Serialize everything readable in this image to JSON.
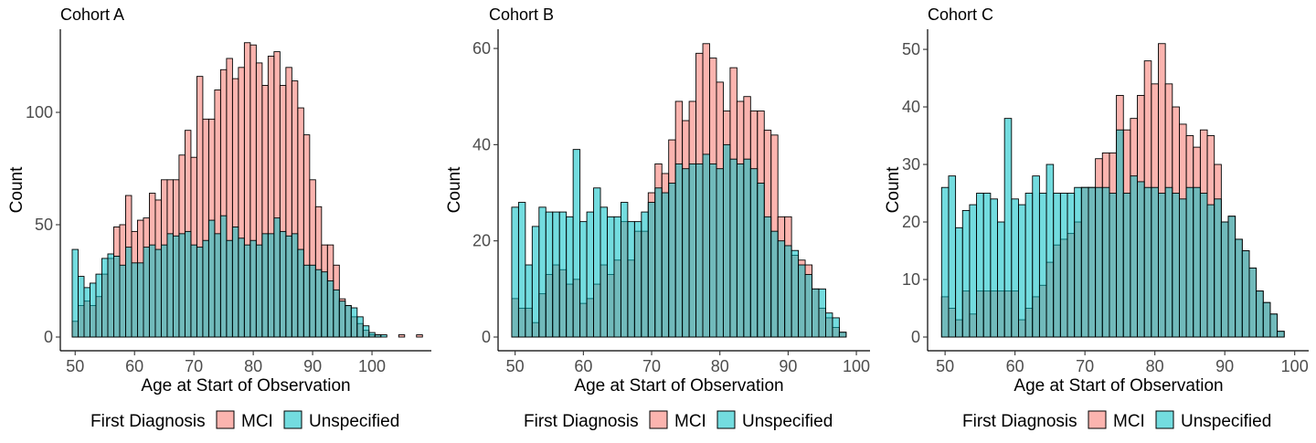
{
  "colors": {
    "mci": "#F8766D",
    "unspecified": "#00BFC4"
  },
  "legend": {
    "title": "First Diagnosis",
    "items": [
      "MCI",
      "Unspecified"
    ]
  },
  "chart_data": [
    {
      "type": "bar",
      "title": "Cohort A",
      "xlabel": "Age at Start of Observation",
      "ylabel": "Count",
      "xlim": [
        47.5,
        110
      ],
      "ylim": [
        0,
        137
      ],
      "xticks": [
        50,
        60,
        70,
        80,
        90,
        100
      ],
      "yticks": [
        0,
        50,
        100
      ],
      "bin_start": 49.5,
      "bin_width": 1,
      "series": [
        {
          "name": "MCI",
          "values": [
            7,
            14,
            16,
            14,
            18,
            28,
            35,
            49,
            50,
            63,
            47,
            52,
            53,
            64,
            61,
            70,
            70,
            70,
            81,
            92,
            80,
            116,
            97,
            97,
            110,
            119,
            124,
            115,
            120,
            131,
            130,
            122,
            112,
            125,
            127,
            112,
            120,
            114,
            102,
            90,
            70,
            58,
            41,
            41,
            32,
            17,
            14,
            9,
            6,
            3,
            1,
            1,
            0,
            0,
            0,
            1,
            0,
            0,
            1
          ]
        },
        {
          "name": "Unspecified",
          "values": [
            39,
            27,
            22,
            24,
            28,
            35,
            37,
            36,
            32,
            40,
            33,
            33,
            40,
            41,
            39,
            41,
            46,
            45,
            46,
            47,
            41,
            40,
            43,
            52,
            46,
            54,
            43,
            49,
            44,
            41,
            43,
            41,
            46,
            46,
            53,
            47,
            45,
            46,
            39,
            32,
            32,
            30,
            29,
            25,
            21,
            16,
            14,
            13,
            9,
            5,
            2,
            1,
            1,
            0,
            0,
            0,
            0,
            0,
            0
          ]
        }
      ]
    },
    {
      "type": "bar",
      "title": "Cohort B",
      "xlabel": "Age at Start of Observation",
      "ylabel": "Count",
      "xlim": [
        47.5,
        102
      ],
      "ylim": [
        0,
        64
      ],
      "xticks": [
        50,
        60,
        70,
        80,
        90,
        100
      ],
      "yticks": [
        0,
        20,
        40,
        60
      ],
      "bin_start": 49.5,
      "bin_width": 1,
      "series": [
        {
          "name": "MCI",
          "values": [
            8,
            6,
            6,
            3,
            9,
            13,
            15,
            14,
            11,
            12,
            7,
            8,
            11,
            15,
            13,
            16,
            24,
            16,
            22,
            22,
            30,
            36,
            34,
            41,
            49,
            45,
            49,
            59,
            61,
            58,
            53,
            47,
            56,
            49,
            50,
            47,
            47,
            43,
            42,
            25,
            25,
            17,
            16,
            15,
            10,
            6,
            4,
            2,
            1
          ]
        },
        {
          "name": "Unspecified",
          "values": [
            27,
            28,
            15,
            23,
            27,
            26,
            26,
            26,
            25,
            39,
            24,
            26,
            31,
            27,
            25,
            25,
            28,
            24,
            24,
            26,
            28,
            31,
            30,
            32,
            36,
            35,
            36,
            36,
            38,
            36,
            35,
            40,
            37,
            36,
            37,
            35,
            32,
            25,
            22,
            20,
            19,
            18,
            15,
            13,
            10,
            10,
            5,
            4,
            1
          ]
        }
      ]
    },
    {
      "type": "bar",
      "title": "Cohort C",
      "xlabel": "Age at Start of Observation",
      "ylabel": "Count",
      "xlim": [
        47.5,
        102
      ],
      "ylim": [
        0,
        53.5
      ],
      "xticks": [
        50,
        60,
        70,
        80,
        90,
        100
      ],
      "yticks": [
        0,
        10,
        20,
        30,
        40,
        50
      ],
      "bin_start": 49.5,
      "bin_width": 1,
      "series": [
        {
          "name": "MCI",
          "values": [
            7,
            5,
            3,
            8,
            4,
            8,
            8,
            8,
            8,
            8,
            8,
            3,
            5,
            7,
            9,
            13,
            16,
            17,
            18,
            20,
            26,
            26,
            31,
            32,
            32,
            42,
            36,
            38,
            42,
            48,
            44,
            51,
            44,
            40,
            37,
            35,
            33,
            36,
            35,
            30,
            20,
            21,
            17,
            15,
            12,
            8,
            6,
            4,
            1
          ]
        },
        {
          "name": "Unspecified",
          "values": [
            26,
            28,
            19,
            22,
            23,
            25,
            25,
            24,
            20,
            38,
            24,
            23,
            25,
            28,
            25,
            30,
            25,
            25,
            25,
            26,
            26,
            26,
            26,
            26,
            25,
            36,
            25,
            28,
            27,
            26,
            26,
            25,
            26,
            25,
            24,
            26,
            26,
            25,
            23,
            24,
            20,
            21,
            17,
            15,
            12,
            8,
            6,
            4,
            1
          ]
        }
      ]
    }
  ]
}
